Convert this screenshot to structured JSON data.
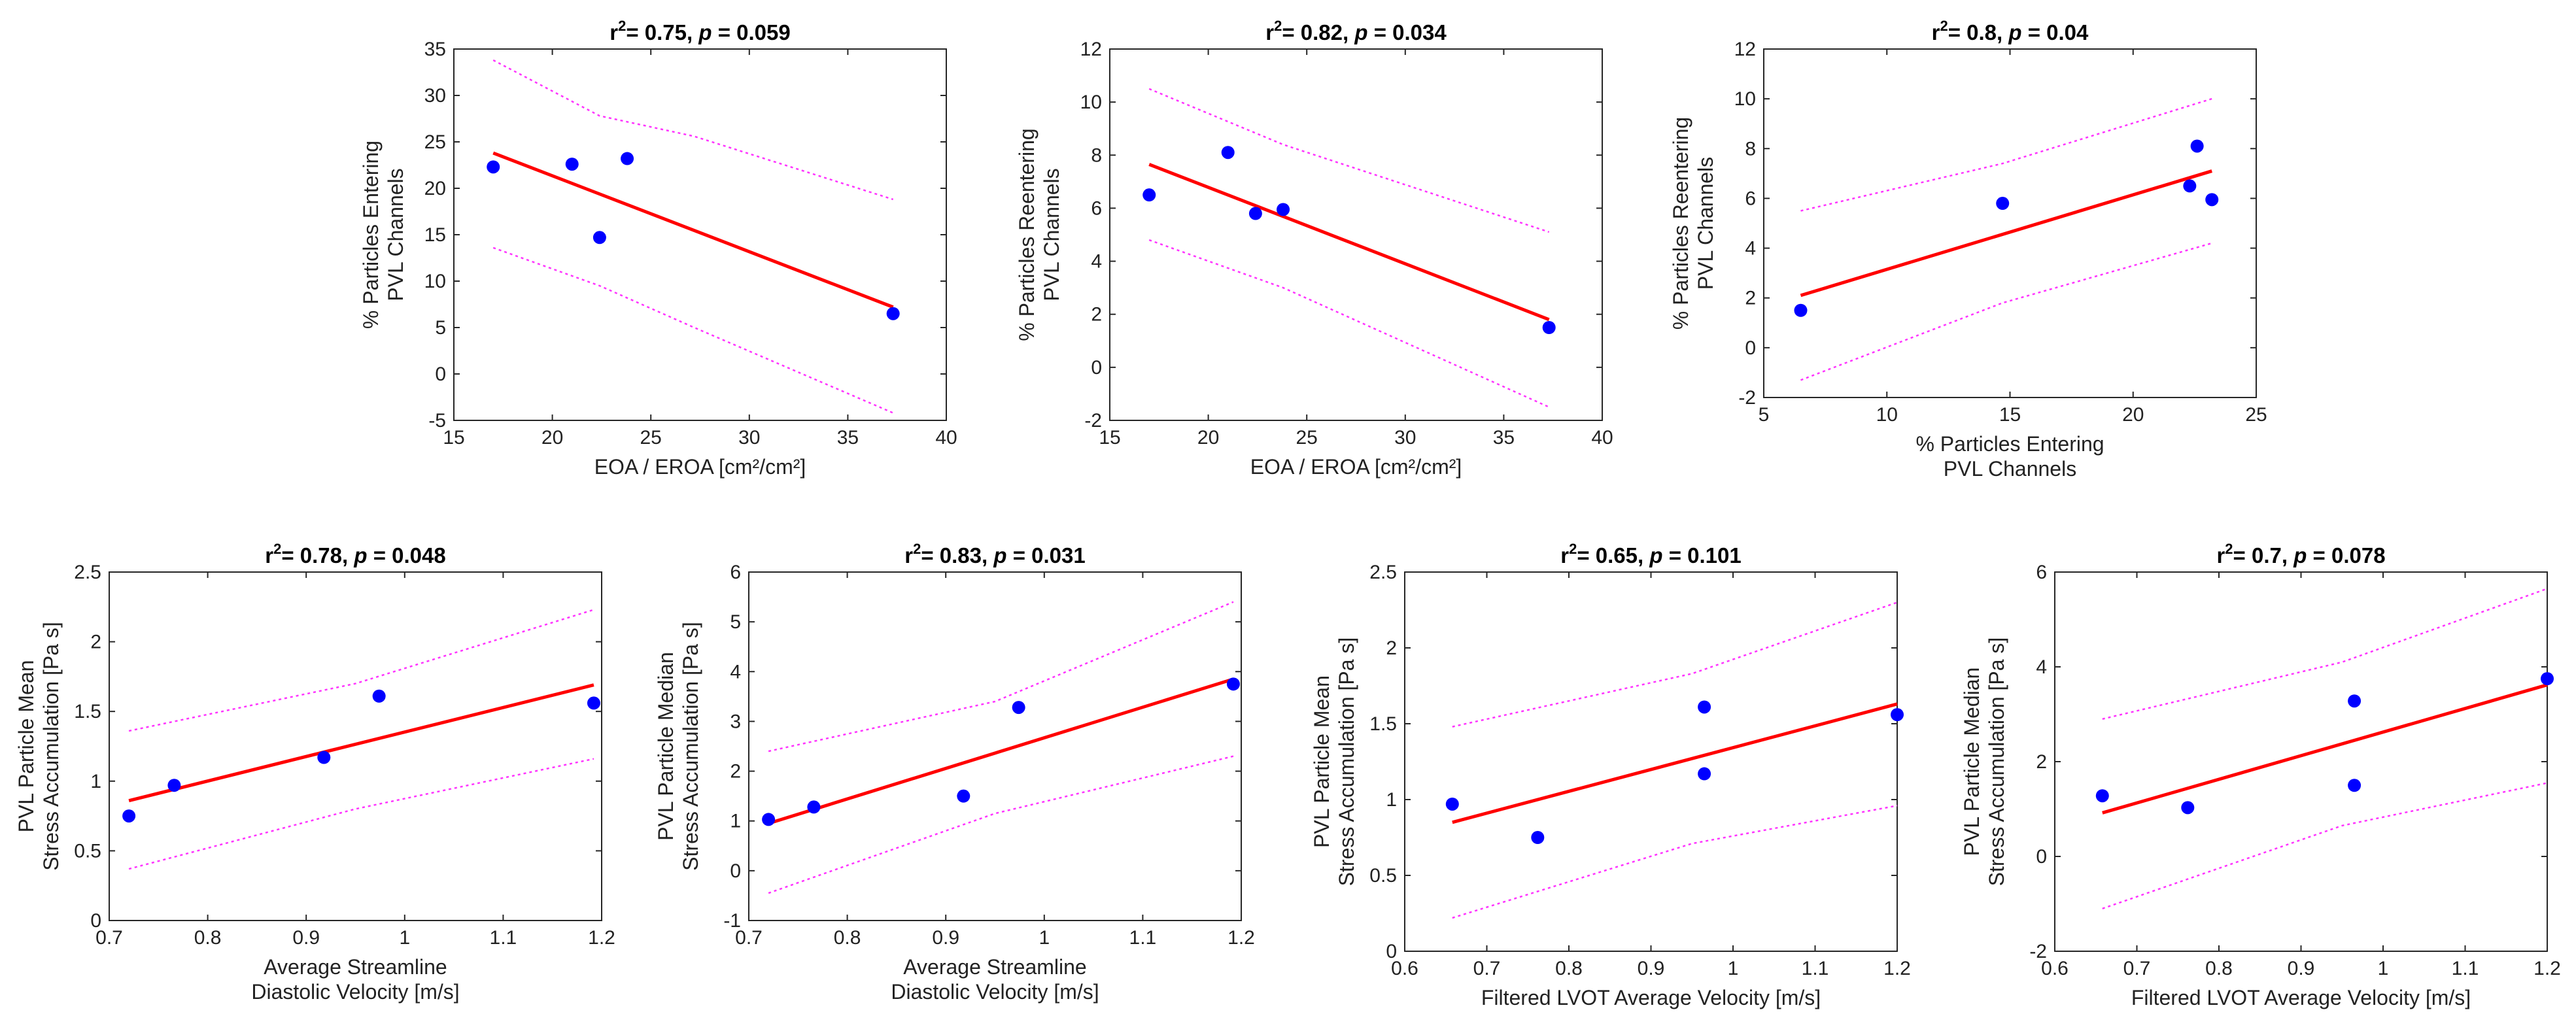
{
  "chart_data": [
    {
      "type": "scatter",
      "title": {
        "r2": "0.75",
        "p": "0.059"
      },
      "xlabel": [
        "EOA / EROA [cm²/cm²]"
      ],
      "ylabel": [
        "% Particles Entering",
        "PVL Channels"
      ],
      "xlim": [
        15,
        40
      ],
      "ylim": [
        -5,
        35
      ],
      "xticks": [
        15,
        20,
        25,
        30,
        35,
        40
      ],
      "yticks": [
        -5,
        0,
        5,
        10,
        15,
        20,
        25,
        30,
        35
      ],
      "x": [
        17.0,
        21.0,
        22.4,
        23.8,
        37.3
      ],
      "y": [
        22.3,
        22.6,
        14.7,
        23.2,
        6.5
      ],
      "fit": {
        "x": [
          17.0,
          37.3
        ],
        "y": [
          23.8,
          7.2
        ]
      },
      "ci_upper": {
        "x": [
          17.0,
          22.4,
          27.2,
          37.3
        ],
        "y": [
          33.8,
          27.8,
          25.6,
          18.8
        ]
      },
      "ci_lower": {
        "x": [
          17.0,
          22.4,
          27.2,
          37.3
        ],
        "y": [
          13.6,
          9.5,
          5.0,
          -4.2
        ]
      }
    },
    {
      "type": "scatter",
      "title": {
        "r2": "0.82",
        "p": "0.034"
      },
      "xlabel": [
        "EOA / EROA [cm²/cm²]"
      ],
      "ylabel": [
        "% Particles Reentering",
        "PVL Channels"
      ],
      "xlim": [
        15,
        40
      ],
      "ylim": [
        -2,
        12
      ],
      "xticks": [
        15,
        20,
        25,
        30,
        35,
        40
      ],
      "yticks": [
        -2,
        0,
        2,
        4,
        6,
        8,
        10,
        12
      ],
      "x": [
        17.0,
        21.0,
        22.4,
        23.8,
        37.3
      ],
      "y": [
        6.5,
        8.1,
        5.8,
        5.95,
        1.5
      ],
      "fit": {
        "x": [
          17.0,
          37.3
        ],
        "y": [
          7.65,
          1.8
        ]
      },
      "ci_upper": {
        "x": [
          17.0,
          23.8,
          37.3
        ],
        "y": [
          10.5,
          8.4,
          5.1
        ]
      },
      "ci_lower": {
        "x": [
          17.0,
          23.8,
          37.3
        ],
        "y": [
          4.8,
          3.0,
          -1.5
        ]
      }
    },
    {
      "type": "scatter",
      "title": {
        "r2": "0.8",
        "p": "0.04"
      },
      "xlabel": [
        "% Particles Entering",
        "PVL Channels"
      ],
      "ylabel": [
        "% Particles Reentering",
        "PVL Channels"
      ],
      "xlim": [
        5,
        25
      ],
      "ylim": [
        -2,
        12
      ],
      "xticks": [
        5,
        10,
        15,
        20,
        25
      ],
      "yticks": [
        -2,
        0,
        2,
        4,
        6,
        8,
        10,
        12
      ],
      "x": [
        6.5,
        14.7,
        22.3,
        22.6,
        23.2
      ],
      "y": [
        1.5,
        5.8,
        6.5,
        8.1,
        5.95
      ],
      "fit": {
        "x": [
          6.5,
          23.2
        ],
        "y": [
          2.1,
          7.1
        ]
      },
      "ci_upper": {
        "x": [
          6.5,
          14.7,
          23.2
        ],
        "y": [
          5.5,
          7.4,
          10.0
        ]
      },
      "ci_lower": {
        "x": [
          6.5,
          14.7,
          23.2
        ],
        "y": [
          -1.3,
          1.8,
          4.2
        ]
      }
    },
    {
      "type": "scatter",
      "title": {
        "r2": "0.78",
        "p": "0.048"
      },
      "xlabel": [
        "Average Streamline",
        "Diastolic Velocity [m/s]"
      ],
      "ylabel": [
        "PVL Particle Mean",
        "Stress Accumulation [Pa s]"
      ],
      "xlim": [
        0.7,
        1.2
      ],
      "ylim": [
        0,
        2.5
      ],
      "xticks": [
        0.7,
        0.8,
        0.9,
        1.0,
        1.1,
        1.2
      ],
      "xticklabels": [
        "0.7",
        "0.8",
        "0.9",
        "1",
        "1.1",
        "1.2"
      ],
      "yticks": [
        0,
        0.5,
        1.0,
        1.5,
        2.0,
        2.5
      ],
      "yticklabels": [
        "0",
        "0.5",
        "1",
        "1.5",
        "2",
        "2.5"
      ],
      "x": [
        0.72,
        0.766,
        0.918,
        0.974,
        1.192
      ],
      "y": [
        0.75,
        0.97,
        1.17,
        1.61,
        1.56
      ],
      "fit": {
        "x": [
          0.72,
          1.192
        ],
        "y": [
          0.86,
          1.69
        ]
      },
      "ci_upper": {
        "x": [
          0.72,
          0.95,
          1.192
        ],
        "y": [
          1.36,
          1.7,
          2.23
        ]
      },
      "ci_lower": {
        "x": [
          0.72,
          0.95,
          1.192
        ],
        "y": [
          0.37,
          0.8,
          1.16
        ]
      }
    },
    {
      "type": "scatter",
      "title": {
        "r2": "0.83",
        "p": "0.031"
      },
      "xlabel": [
        "Average Streamline",
        "Diastolic Velocity [m/s]"
      ],
      "ylabel": [
        "PVL Particle Median",
        "Stress Accumulation [Pa s]"
      ],
      "xlim": [
        0.7,
        1.2
      ],
      "ylim": [
        -1,
        6
      ],
      "xticks": [
        0.7,
        0.8,
        0.9,
        1.0,
        1.1,
        1.2
      ],
      "xticklabels": [
        "0.7",
        "0.8",
        "0.9",
        "1",
        "1.1",
        "1.2"
      ],
      "yticks": [
        -1,
        0,
        1,
        2,
        3,
        4,
        5,
        6
      ],
      "x": [
        0.72,
        0.766,
        0.918,
        0.974,
        1.192
      ],
      "y": [
        1.03,
        1.28,
        1.5,
        3.28,
        3.75
      ],
      "fit": {
        "x": [
          0.72,
          1.192
        ],
        "y": [
          0.95,
          3.85
        ]
      },
      "ci_upper": {
        "x": [
          0.72,
          0.95,
          1.192
        ],
        "y": [
          2.4,
          3.4,
          5.4
        ]
      },
      "ci_lower": {
        "x": [
          0.72,
          0.95,
          1.192
        ],
        "y": [
          -0.45,
          1.15,
          2.3
        ]
      }
    },
    {
      "type": "scatter",
      "title": {
        "r2": "0.65",
        "p": "0.101"
      },
      "xlabel": [
        "Filtered LVOT Average Velocity [m/s]"
      ],
      "ylabel": [
        "PVL Particle Mean",
        "Stress Accumulation [Pa s]"
      ],
      "xlim": [
        0.6,
        1.2
      ],
      "ylim": [
        0,
        2.5
      ],
      "xticks": [
        0.6,
        0.7,
        0.8,
        0.9,
        1.0,
        1.1,
        1.2
      ],
      "xticklabels": [
        "0.6",
        "0.7",
        "0.8",
        "0.9",
        "1",
        "1.1",
        "1.2"
      ],
      "yticks": [
        0,
        0.5,
        1.0,
        1.5,
        2.0,
        2.5
      ],
      "yticklabels": [
        "0",
        "0.5",
        "1",
        "1.5",
        "2",
        "2.5"
      ],
      "x": [
        0.658,
        0.762,
        0.965,
        0.965,
        1.2
      ],
      "y": [
        0.97,
        0.75,
        1.61,
        1.17,
        1.56
      ],
      "fit": {
        "x": [
          0.658,
          1.2
        ],
        "y": [
          0.85,
          1.63
        ]
      },
      "ci_upper": {
        "x": [
          0.658,
          0.95,
          1.2
        ],
        "y": [
          1.48,
          1.83,
          2.3
        ]
      },
      "ci_lower": {
        "x": [
          0.658,
          0.95,
          1.2
        ],
        "y": [
          0.22,
          0.71,
          0.96
        ]
      }
    },
    {
      "type": "scatter",
      "title": {
        "r2": "0.7",
        "p": "0.078"
      },
      "xlabel": [
        "Filtered LVOT Average Velocity [m/s]"
      ],
      "ylabel": [
        "PVL Particle Median",
        "Stress Accumulation [Pa s]"
      ],
      "xlim": [
        0.6,
        1.2
      ],
      "ylim": [
        -2,
        6
      ],
      "xticks": [
        0.6,
        0.7,
        0.8,
        0.9,
        1.0,
        1.1,
        1.2
      ],
      "xticklabels": [
        "0.6",
        "0.7",
        "0.8",
        "0.9",
        "1",
        "1.1",
        "1.2"
      ],
      "yticks": [
        -2,
        0,
        2,
        4,
        6
      ],
      "x": [
        0.658,
        0.762,
        0.965,
        0.965,
        1.2
      ],
      "y": [
        1.28,
        1.03,
        3.28,
        1.5,
        3.75
      ],
      "fit": {
        "x": [
          0.658,
          1.2
        ],
        "y": [
          0.92,
          3.62
        ]
      },
      "ci_upper": {
        "x": [
          0.658,
          0.95,
          1.2
        ],
        "y": [
          2.9,
          4.1,
          5.65
        ]
      },
      "ci_lower": {
        "x": [
          0.658,
          0.95,
          1.2
        ],
        "y": [
          -1.1,
          0.65,
          1.55
        ]
      }
    }
  ]
}
